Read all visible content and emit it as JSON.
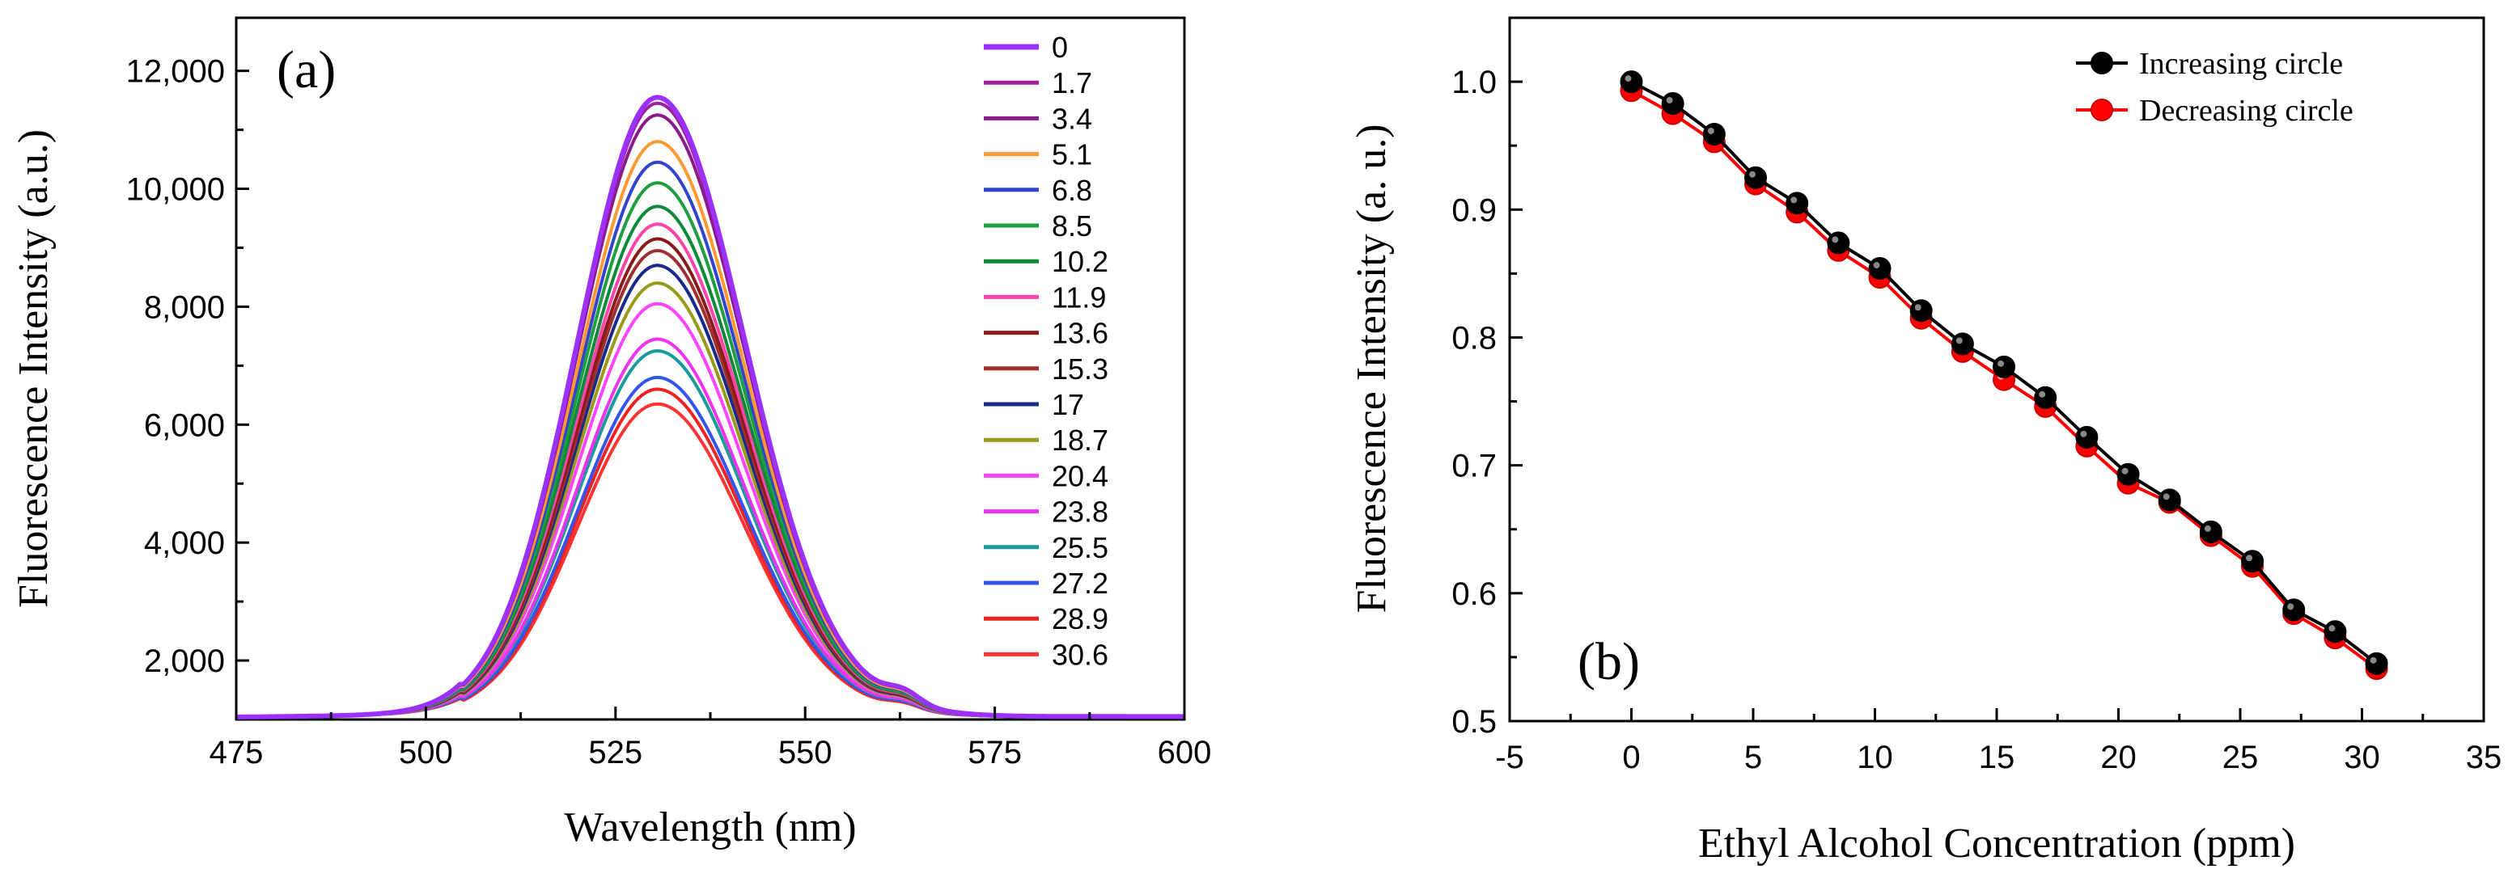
{
  "chart_data": [
    {
      "panel_label": "(a)",
      "type": "line",
      "xlabel": "Wavelength (nm)",
      "ylabel": "Fluorescence Intensity (a.u.)",
      "xlim": [
        475,
        600
      ],
      "ylim": [
        1000,
        12900
      ],
      "xticks": [
        475,
        500,
        525,
        550,
        575,
        600
      ],
      "yticks": [
        2000,
        4000,
        6000,
        8000,
        10000,
        12000
      ],
      "ytick_labels": [
        "2,000",
        "4,000",
        "6,000",
        "8,000",
        "10,000",
        "12,000"
      ],
      "legend_position": "top-right",
      "baseline": 1050,
      "peak_center": 530.5,
      "series": [
        {
          "name": "0",
          "peak": 11550,
          "color": "#9b30ff"
        },
        {
          "name": "1.7",
          "peak": 11450,
          "color": "#a020a0"
        },
        {
          "name": "3.4",
          "peak": 11250,
          "color": "#8b1a8b"
        },
        {
          "name": "5.1",
          "peak": 10800,
          "color": "#ff9933"
        },
        {
          "name": "6.8",
          "peak": 10450,
          "color": "#3344cc"
        },
        {
          "name": "8.5",
          "peak": 10100,
          "color": "#1e9e3e"
        },
        {
          "name": "10.2",
          "peak": 9700,
          "color": "#0b8a3a"
        },
        {
          "name": "11.9",
          "peak": 9400,
          "color": "#ff44aa"
        },
        {
          "name": "13.6",
          "peak": 9150,
          "color": "#8b1a1a"
        },
        {
          "name": "15.3",
          "peak": 8950,
          "color": "#a03030"
        },
        {
          "name": "17",
          "peak": 8700,
          "color": "#1a2a8b"
        },
        {
          "name": "18.7",
          "peak": 8400,
          "color": "#9a9a1a"
        },
        {
          "name": "20.4",
          "peak": 8050,
          "color": "#ff44ff"
        },
        {
          "name": "23.8",
          "peak": 7450,
          "color": "#ee33ee"
        },
        {
          "name": "25.5",
          "peak": 7250,
          "color": "#1a9a9a"
        },
        {
          "name": "27.2",
          "peak": 6800,
          "color": "#3355ee"
        },
        {
          "name": "28.9",
          "peak": 6600,
          "color": "#ee2222"
        },
        {
          "name": "30.6",
          "peak": 6350,
          "color": "#ff3333"
        }
      ]
    },
    {
      "panel_label": "(b)",
      "type": "line",
      "xlabel": "Ethyl Alcohol Concentration (ppm)",
      "ylabel": "Fluorescence Intensity (a. u.)",
      "xlim": [
        -5,
        35
      ],
      "ylim": [
        0.5,
        1.05
      ],
      "xticks": [
        -5,
        0,
        5,
        10,
        15,
        20,
        25,
        30,
        35
      ],
      "yticks": [
        0.5,
        0.6,
        0.7,
        0.8,
        0.9,
        1.0
      ],
      "ytick_labels": [
        "0.5",
        "0.6",
        "0.7",
        "0.8",
        "0.9",
        "1.0"
      ],
      "legend_position": "top-right",
      "x": [
        0,
        1.7,
        3.4,
        5.1,
        6.8,
        8.5,
        10.2,
        11.9,
        13.6,
        15.3,
        17,
        18.7,
        20.4,
        22.1,
        23.8,
        25.5,
        27.2,
        28.9,
        30.6
      ],
      "series": [
        {
          "name": "Increasing circle",
          "color": "#000000",
          "values": [
            1.0,
            0.983,
            0.959,
            0.925,
            0.905,
            0.874,
            0.854,
            0.821,
            0.795,
            0.777,
            0.753,
            0.722,
            0.693,
            0.673,
            0.648,
            0.625,
            0.587,
            0.57,
            0.545
          ]
        },
        {
          "name": "Decreasing circle",
          "color": "#ff0000",
          "values": [
            0.993,
            0.975,
            0.953,
            0.92,
            0.898,
            0.868,
            0.847,
            0.815,
            0.789,
            0.767,
            0.746,
            0.715,
            0.686,
            0.671,
            0.645,
            0.621,
            0.584,
            0.565,
            0.541
          ]
        }
      ]
    }
  ]
}
